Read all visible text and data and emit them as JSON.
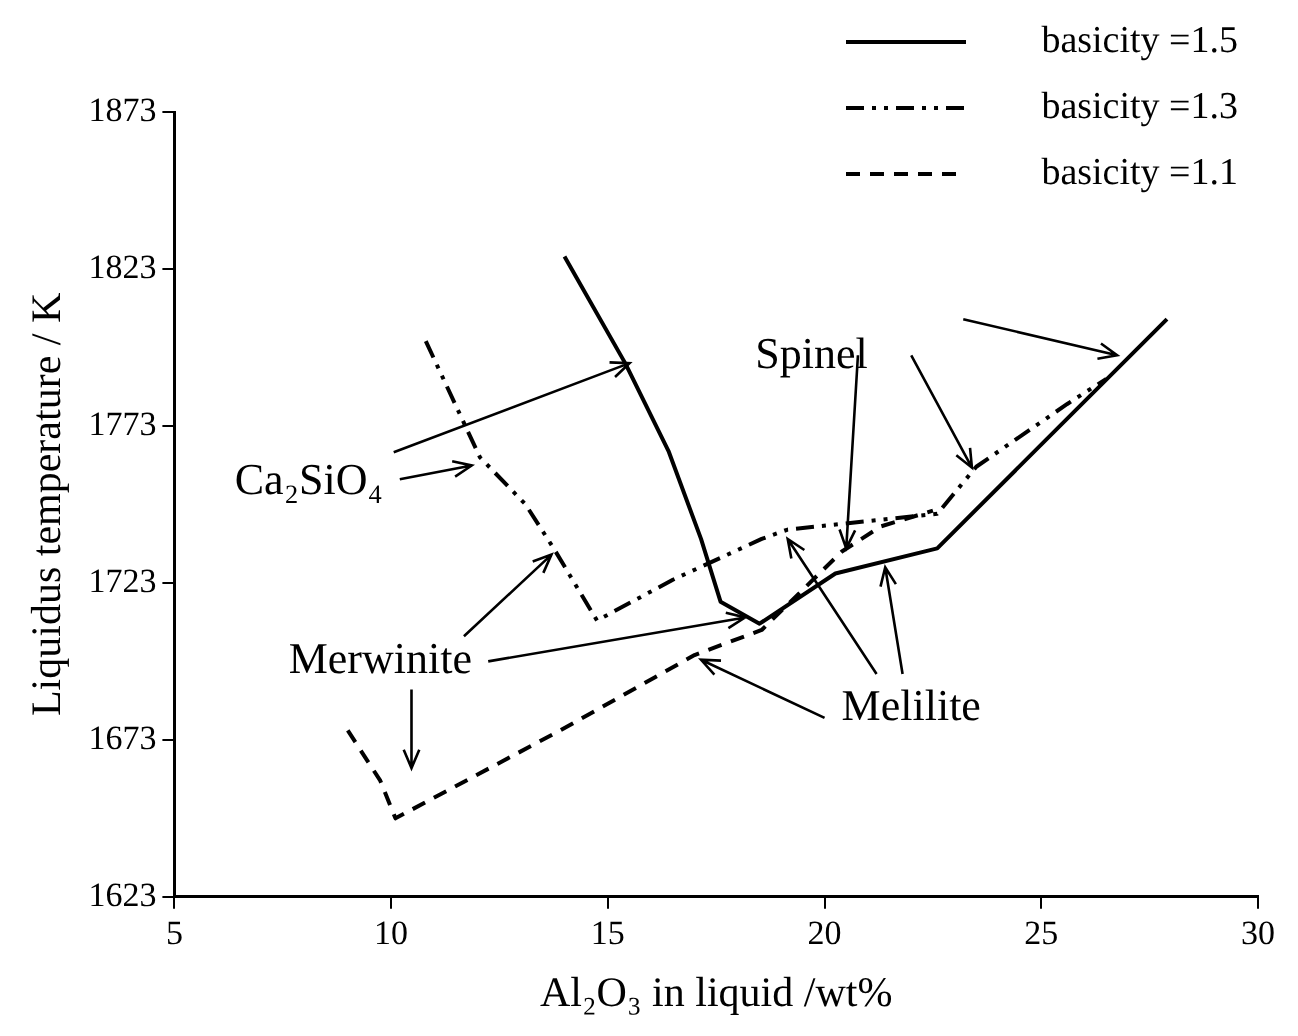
{
  "chart_data": {
    "type": "line",
    "xlabel": "Al₂O₃ in liquid /wt%",
    "ylabel": "Liquidus temperature / K",
    "xlim": [
      5,
      30
    ],
    "xticks": [
      5,
      10,
      15,
      20,
      25,
      30
    ],
    "ylim": [
      1623,
      1873
    ],
    "yticks": [
      1623,
      1673,
      1723,
      1773,
      1823,
      1873
    ],
    "grid": false,
    "legend": "top right",
    "marker": "none",
    "series": [
      {
        "name": "basicity =1.5",
        "color": "#000000",
        "line_style": "solid",
        "x": [
          14.0,
          15.4,
          16.4,
          17.15,
          17.6,
          18.5,
          20.25,
          22.6,
          27.9
        ],
        "values": [
          1827,
          1793,
          1765,
          1737,
          1717,
          1710,
          1726,
          1734,
          1807
        ]
      },
      {
        "name": "basicity =1.3",
        "color": "#000000",
        "line_style": "dashdot",
        "x": [
          10.8,
          12.05,
          13.1,
          13.75,
          14.75,
          16.5,
          18.55,
          19.15,
          22.6,
          23.5,
          25.6,
          26.5
        ],
        "values": [
          1800,
          1763,
          1748,
          1734,
          1711,
          1724,
          1737,
          1740,
          1745,
          1760,
          1780,
          1788
        ]
      },
      {
        "name": "basicity =1.1",
        "color": "#000000",
        "line_style": "dashed",
        "x": [
          9.0,
          9.75,
          10.1,
          13.9,
          17.0,
          18.55,
          20.4,
          21.3,
          22.5
        ],
        "values": [
          1676,
          1660,
          1648,
          1676,
          1700,
          1708,
          1733,
          1741,
          1746
        ]
      }
    ],
    "annotations": [
      {
        "text": "Ca₂SiO₄",
        "x": 15.5,
        "y": 1793
      },
      {
        "text": "Merwinite",
        "x": 13.7,
        "y": 1732
      },
      {
        "text": "Spinel",
        "x": 20.5,
        "y": 1734
      },
      {
        "text": "Melilite",
        "x": 19.15,
        "y": 1737
      }
    ]
  }
}
